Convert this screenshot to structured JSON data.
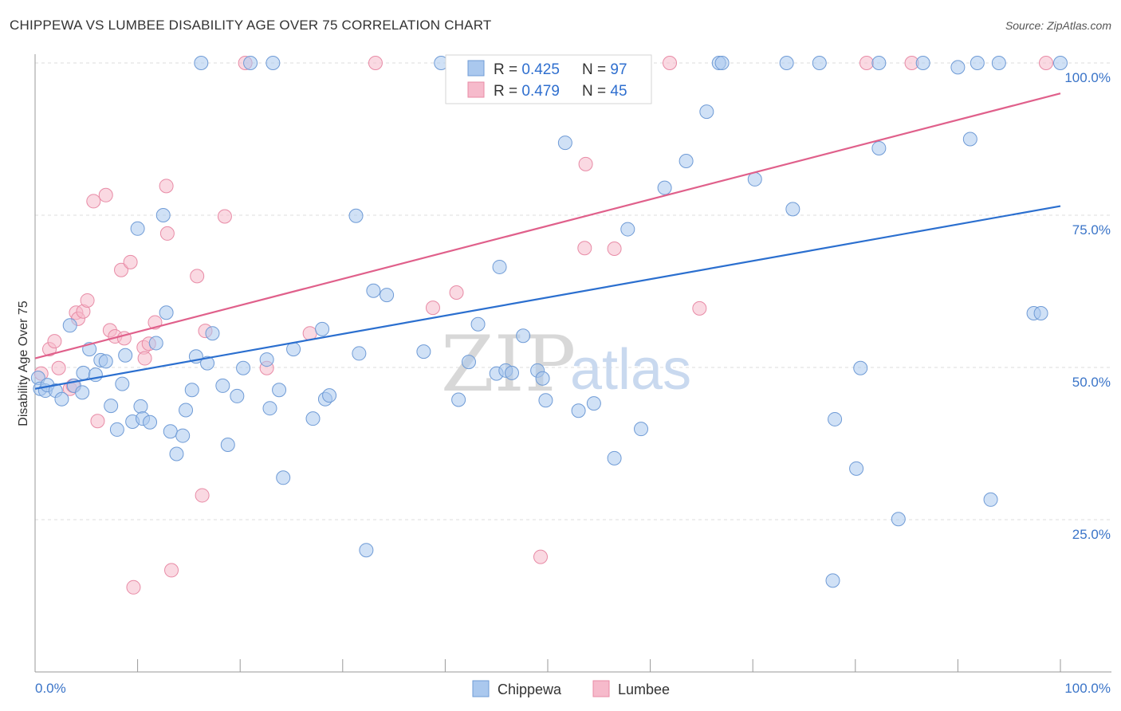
{
  "title": "CHIPPEWA VS LUMBEE DISABILITY AGE OVER 75 CORRELATION CHART",
  "source": "Source: ZipAtlas.com",
  "watermark": {
    "part1": "ZIP",
    "part2": "atlas"
  },
  "legend_top": [
    {
      "r_label": "R =",
      "r_value": "0.425",
      "n_label": "N =",
      "n_value": "97"
    },
    {
      "r_label": "R =",
      "r_value": "0.479",
      "n_label": "N =",
      "n_value": "45"
    }
  ],
  "colors": {
    "chippewa_fill": "#aac8ee",
    "chippewa_stroke": "#6f9bd6",
    "chippewa_line": "#2b6fcf",
    "lumbee_fill": "#f6bacb",
    "lumbee_stroke": "#e88ba6",
    "lumbee_line": "#e0608b",
    "tick": "#3a74c8",
    "grid": "#dddddd"
  },
  "chart_data": {
    "type": "scatter",
    "title": "CHIPPEWA VS LUMBEE DISABILITY AGE OVER 75 CORRELATION CHART",
    "xlabel": "",
    "ylabel": "Disability Age Over 75",
    "xlim": [
      0,
      100
    ],
    "ylim": [
      0,
      105
    ],
    "x_tick_labels": [
      "0.0%",
      "100.0%"
    ],
    "y_ticks": [
      {
        "value": 25,
        "label": "25.0%"
      },
      {
        "value": 50,
        "label": "50.0%"
      },
      {
        "value": 75,
        "label": "75.0%"
      },
      {
        "value": 100,
        "label": "100.0%"
      }
    ],
    "grid": true,
    "legend": "top-center",
    "series": [
      {
        "name": "Chippewa",
        "stats": {
          "R": 0.425,
          "N": 97
        },
        "trend": {
          "x": [
            0,
            100
          ],
          "y": [
            46.5,
            76.5
          ]
        },
        "points": [
          [
            0.3,
            48.3
          ],
          [
            0.5,
            46.5
          ],
          [
            1.0,
            46.2
          ],
          [
            1.2,
            47.1
          ],
          [
            2.0,
            46.2
          ],
          [
            2.6,
            44.8
          ],
          [
            3.4,
            56.9
          ],
          [
            3.8,
            47.0
          ],
          [
            4.6,
            45.9
          ],
          [
            4.7,
            49.1
          ],
          [
            5.3,
            53.0
          ],
          [
            5.9,
            48.8
          ],
          [
            6.4,
            51.2
          ],
          [
            6.9,
            51.0
          ],
          [
            7.4,
            43.7
          ],
          [
            8.0,
            39.8
          ],
          [
            8.5,
            47.3
          ],
          [
            8.8,
            52.0
          ],
          [
            9.5,
            41.1
          ],
          [
            10.0,
            72.8
          ],
          [
            10.3,
            43.6
          ],
          [
            10.5,
            41.6
          ],
          [
            11.2,
            41.0
          ],
          [
            11.8,
            54.0
          ],
          [
            12.5,
            75.0
          ],
          [
            12.8,
            59.0
          ],
          [
            13.2,
            39.5
          ],
          [
            13.8,
            35.8
          ],
          [
            14.4,
            38.8
          ],
          [
            14.7,
            43.0
          ],
          [
            15.3,
            46.3
          ],
          [
            15.7,
            51.8
          ],
          [
            16.2,
            100
          ],
          [
            16.8,
            50.7
          ],
          [
            17.3,
            55.6
          ],
          [
            18.3,
            47.0
          ],
          [
            18.8,
            37.3
          ],
          [
            19.7,
            45.3
          ],
          [
            20.3,
            49.9
          ],
          [
            21.0,
            100
          ],
          [
            22.6,
            51.3
          ],
          [
            22.9,
            43.3
          ],
          [
            23.2,
            100
          ],
          [
            23.8,
            46.3
          ],
          [
            24.2,
            31.9
          ],
          [
            25.2,
            53.0
          ],
          [
            27.1,
            41.6
          ],
          [
            28.0,
            56.3
          ],
          [
            28.3,
            44.8
          ],
          [
            28.7,
            45.4
          ],
          [
            31.3,
            74.9
          ],
          [
            31.6,
            52.3
          ],
          [
            32.3,
            20.0
          ],
          [
            33.0,
            62.6
          ],
          [
            34.3,
            61.9
          ],
          [
            37.9,
            52.6
          ],
          [
            39.6,
            100
          ],
          [
            41.3,
            44.7
          ],
          [
            42.3,
            50.9
          ],
          [
            43.2,
            57.1
          ],
          [
            45.0,
            49.0
          ],
          [
            45.3,
            66.5
          ],
          [
            45.9,
            49.5
          ],
          [
            46.5,
            49.1
          ],
          [
            47.6,
            55.2
          ],
          [
            49.0,
            49.5
          ],
          [
            49.5,
            48.2
          ],
          [
            49.8,
            44.6
          ],
          [
            51.7,
            86.9
          ],
          [
            53.0,
            42.9
          ],
          [
            54.5,
            44.1
          ],
          [
            56.5,
            35.1
          ],
          [
            57.8,
            72.7
          ],
          [
            59.1,
            39.9
          ],
          [
            61.4,
            79.5
          ],
          [
            63.5,
            83.9
          ],
          [
            65.5,
            92.0
          ],
          [
            66.7,
            100
          ],
          [
            67.0,
            100
          ],
          [
            70.2,
            80.9
          ],
          [
            73.3,
            100
          ],
          [
            73.9,
            76.0
          ],
          [
            76.5,
            100
          ],
          [
            77.8,
            15.0
          ],
          [
            78.0,
            41.5
          ],
          [
            80.1,
            33.4
          ],
          [
            80.5,
            49.9
          ],
          [
            82.3,
            100
          ],
          [
            82.3,
            86.0
          ],
          [
            84.2,
            25.1
          ],
          [
            86.6,
            100
          ],
          [
            90.0,
            99.3
          ],
          [
            91.2,
            87.5
          ],
          [
            91.9,
            100
          ],
          [
            93.2,
            28.3
          ],
          [
            94.0,
            100
          ],
          [
            97.4,
            58.9
          ],
          [
            98.1,
            58.9
          ],
          [
            100,
            100
          ]
        ]
      },
      {
        "name": "Lumbee",
        "stats": {
          "R": 0.479,
          "N": 45
        },
        "trend": {
          "x": [
            0,
            100
          ],
          "y": [
            51.5,
            95.0
          ]
        },
        "points": [
          [
            0.6,
            49.0
          ],
          [
            1.4,
            53.0
          ],
          [
            1.9,
            54.3
          ],
          [
            2.3,
            49.9
          ],
          [
            3.4,
            46.5
          ],
          [
            3.7,
            47.0
          ],
          [
            4.0,
            59.0
          ],
          [
            4.2,
            58.0
          ],
          [
            4.7,
            59.2
          ],
          [
            5.1,
            61.0
          ],
          [
            5.7,
            77.3
          ],
          [
            6.1,
            41.2
          ],
          [
            6.9,
            78.3
          ],
          [
            7.3,
            56.1
          ],
          [
            7.8,
            55.1
          ],
          [
            8.4,
            66.0
          ],
          [
            8.7,
            54.8
          ],
          [
            9.3,
            67.3
          ],
          [
            9.6,
            13.9
          ],
          [
            10.6,
            53.3
          ],
          [
            10.7,
            51.5
          ],
          [
            11.1,
            53.9
          ],
          [
            11.7,
            57.4
          ],
          [
            12.8,
            79.8
          ],
          [
            12.9,
            72.0
          ],
          [
            13.3,
            16.7
          ],
          [
            15.8,
            65.0
          ],
          [
            16.3,
            29.0
          ],
          [
            16.6,
            56.0
          ],
          [
            18.5,
            74.8
          ],
          [
            20.5,
            100
          ],
          [
            22.6,
            49.9
          ],
          [
            26.8,
            55.6
          ],
          [
            33.2,
            100
          ],
          [
            38.8,
            59.8
          ],
          [
            41.1,
            62.3
          ],
          [
            49.3,
            18.9
          ],
          [
            53.6,
            69.6
          ],
          [
            53.7,
            83.4
          ],
          [
            56.5,
            69.5
          ],
          [
            61.9,
            100
          ],
          [
            64.8,
            59.7
          ],
          [
            81.1,
            100
          ],
          [
            85.5,
            100
          ],
          [
            98.6,
            100
          ]
        ]
      }
    ]
  },
  "bottom_legend": [
    "Chippewa",
    "Lumbee"
  ]
}
